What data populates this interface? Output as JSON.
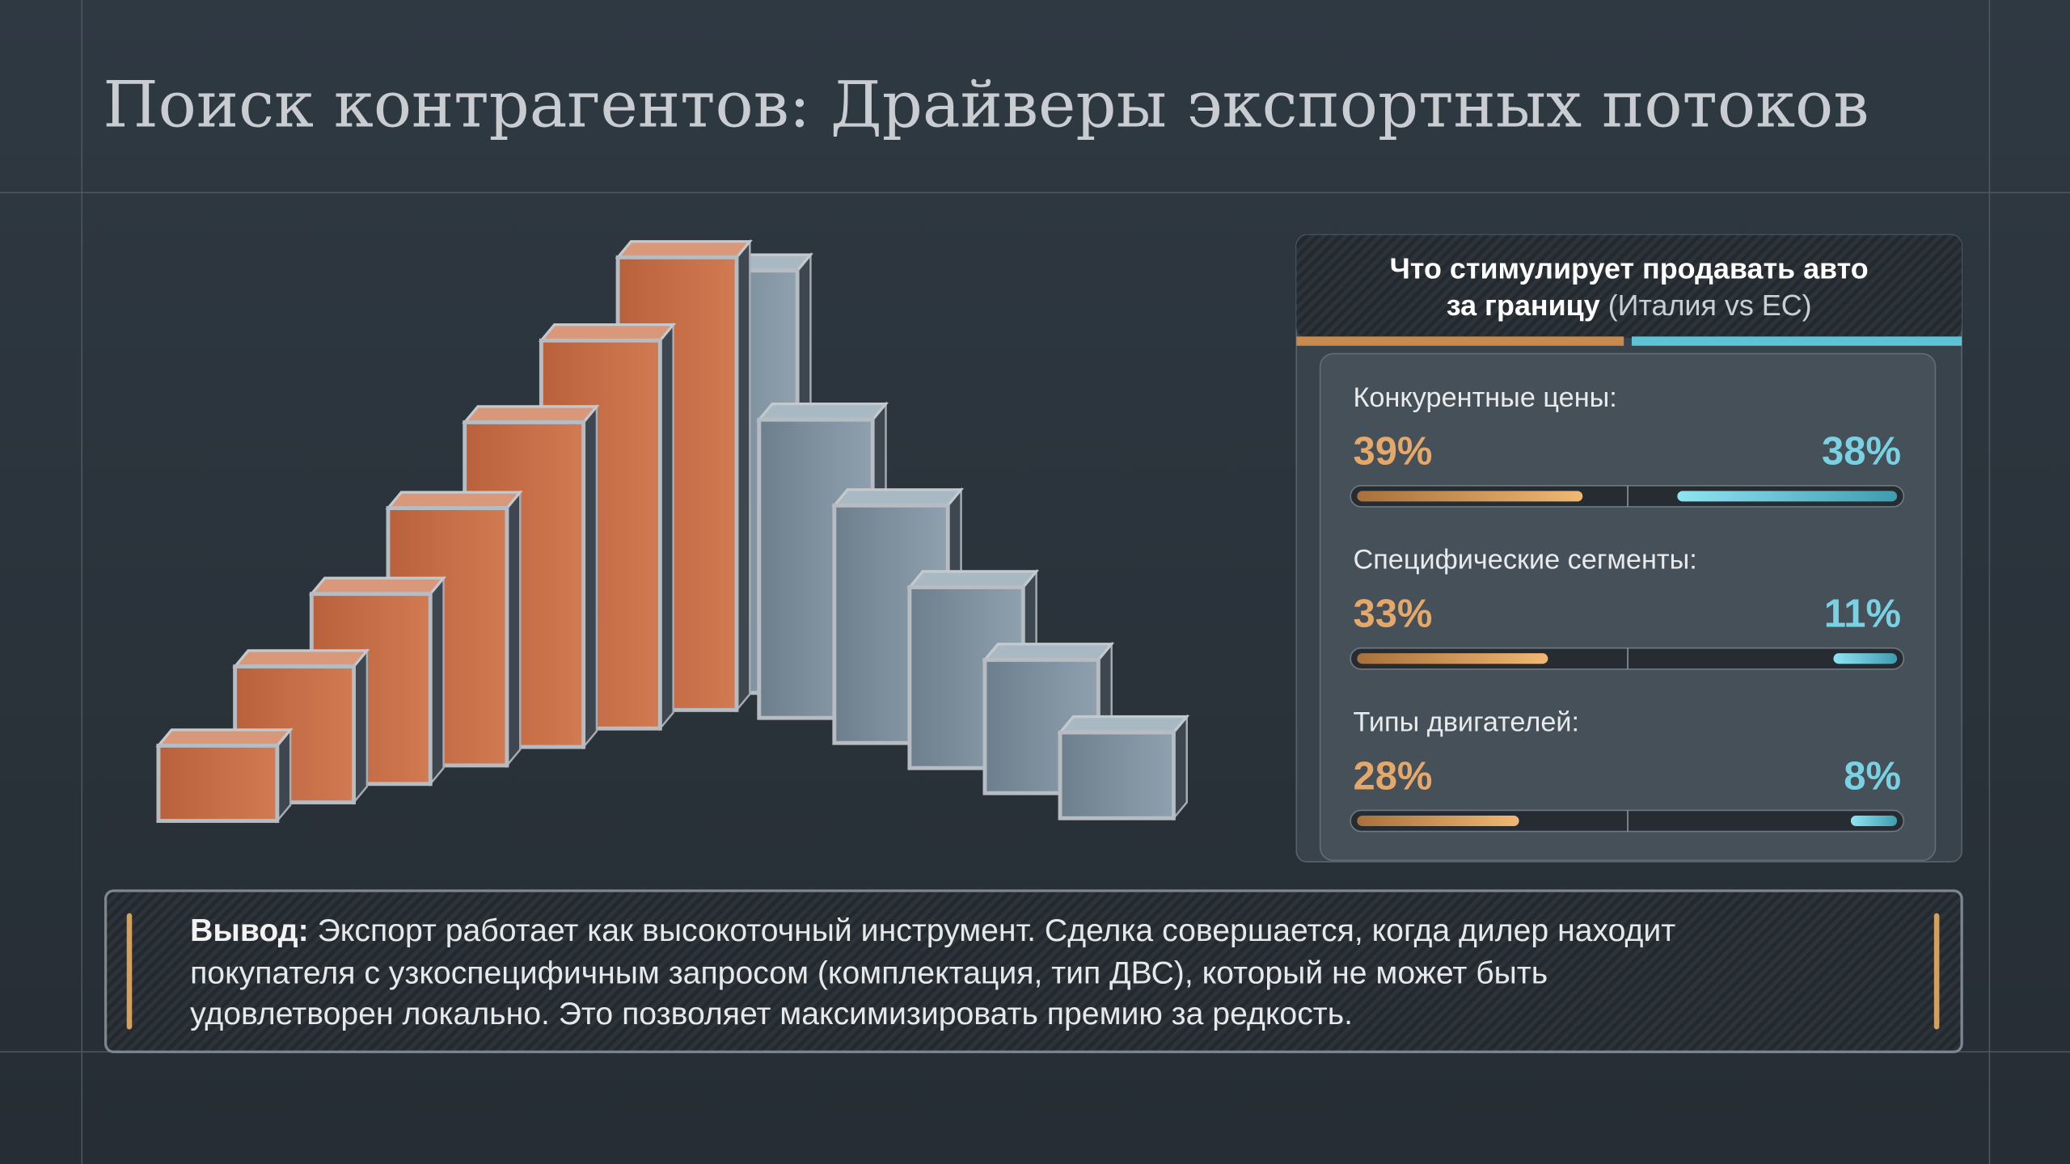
{
  "header": {
    "title": "Поиск контрагентов: Драйверы экспортных потоков"
  },
  "panel": {
    "title": "Что стимулирует продавать авто",
    "title_line2": "за границу",
    "note": "(Италия vs ЕС)",
    "items": [
      {
        "label": "Конкурентные цены:",
        "values": [
          39,
          38
        ],
        "value_labels": [
          "39%",
          "38%"
        ]
      },
      {
        "label": "Специфические сегменты:",
        "values": [
          33,
          11
        ],
        "value_labels": [
          "33%",
          "11%"
        ]
      },
      {
        "label": "Типы двигателей:",
        "values": [
          28,
          8
        ],
        "value_labels": [
          "28%",
          "8%"
        ]
      }
    ]
  },
  "conclusion": {
    "lead": "Вывод:",
    "lines": [
      "Экспорт работает как высокоточный инструмент. Сделка совершается, когда дилер находит",
      "покупателя с узкоспецифичным запросом (комплектация, тип ДВС), который не может быть",
      "удовлетворен локально. Это позволяет максимизировать премию за редкость."
    ]
  }
}
